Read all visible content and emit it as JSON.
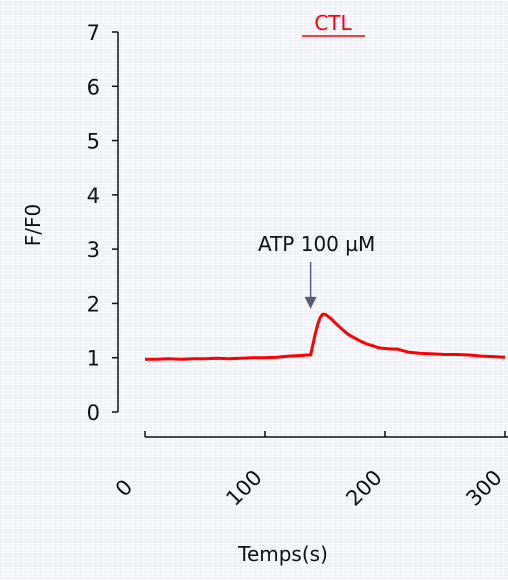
{
  "chart_data": {
    "type": "line",
    "title": "CTL",
    "xlabel": "Temps(s)",
    "ylabel": "F/F0",
    "xlim": [
      0,
      300
    ],
    "ylim": [
      0,
      7
    ],
    "x_ticks": [
      "0",
      "100",
      "200",
      "300"
    ],
    "y_ticks": [
      "0",
      "1",
      "2",
      "3",
      "4",
      "5",
      "6",
      "7"
    ],
    "grid": false,
    "annotations": [
      {
        "text": "ATP 100 µM",
        "x": 138,
        "y_arrow_tip": 1.9
      }
    ],
    "series": [
      {
        "color": "#ff0000",
        "x": [
          0,
          10,
          20,
          30,
          40,
          50,
          60,
          70,
          80,
          90,
          100,
          110,
          120,
          130,
          135,
          138,
          140,
          142,
          144,
          146,
          148,
          150,
          152,
          155,
          158,
          162,
          166,
          170,
          175,
          180,
          185,
          190,
          195,
          200,
          205,
          210,
          215,
          220,
          230,
          240,
          250,
          260,
          270,
          280,
          290,
          300
        ],
        "values": [
          0.97,
          0.97,
          0.98,
          0.97,
          0.98,
          0.98,
          0.99,
          0.98,
          0.99,
          1.0,
          1.0,
          1.01,
          1.03,
          1.04,
          1.05,
          1.05,
          1.25,
          1.45,
          1.62,
          1.74,
          1.8,
          1.8,
          1.77,
          1.72,
          1.65,
          1.57,
          1.49,
          1.42,
          1.36,
          1.3,
          1.25,
          1.22,
          1.18,
          1.17,
          1.16,
          1.16,
          1.13,
          1.1,
          1.08,
          1.07,
          1.06,
          1.06,
          1.05,
          1.03,
          1.02,
          1.01
        ]
      }
    ]
  }
}
